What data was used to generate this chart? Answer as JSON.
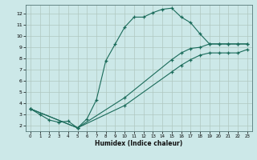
{
  "xlabel": "Humidex (Indice chaleur)",
  "bg_color": "#cce8e8",
  "grid_color": "#b0c8c0",
  "line_color": "#1a6b5a",
  "xlim": [
    -0.5,
    23.5
  ],
  "ylim": [
    1.5,
    12.8
  ],
  "xticks": [
    0,
    1,
    2,
    3,
    4,
    5,
    6,
    7,
    8,
    9,
    10,
    11,
    12,
    13,
    14,
    15,
    16,
    17,
    18,
    19,
    20,
    21,
    22,
    23
  ],
  "yticks": [
    2,
    3,
    4,
    5,
    6,
    7,
    8,
    9,
    10,
    11,
    12
  ],
  "line1_x": [
    0,
    1,
    2,
    3,
    4,
    5,
    6,
    7,
    8,
    9,
    10,
    11,
    12,
    13,
    14,
    15,
    16,
    17,
    18,
    19,
    20,
    21,
    22,
    23
  ],
  "line1_y": [
    3.5,
    3.0,
    2.5,
    2.3,
    2.4,
    1.8,
    2.6,
    4.3,
    7.8,
    9.3,
    10.8,
    11.7,
    11.7,
    12.1,
    12.4,
    12.5,
    11.7,
    11.2,
    10.2,
    9.3,
    9.3,
    9.3,
    9.3,
    9.3
  ],
  "line2_x": [
    0,
    5,
    10,
    15,
    16,
    17,
    18,
    19,
    20,
    21,
    22,
    23
  ],
  "line2_y": [
    3.5,
    1.8,
    4.5,
    7.9,
    8.5,
    8.9,
    9.0,
    9.3,
    9.3,
    9.3,
    9.3,
    9.3
  ],
  "line3_x": [
    0,
    5,
    10,
    15,
    16,
    17,
    18,
    19,
    20,
    21,
    22,
    23
  ],
  "line3_y": [
    3.5,
    1.8,
    3.8,
    6.8,
    7.4,
    7.9,
    8.3,
    8.5,
    8.5,
    8.5,
    8.5,
    8.8
  ]
}
